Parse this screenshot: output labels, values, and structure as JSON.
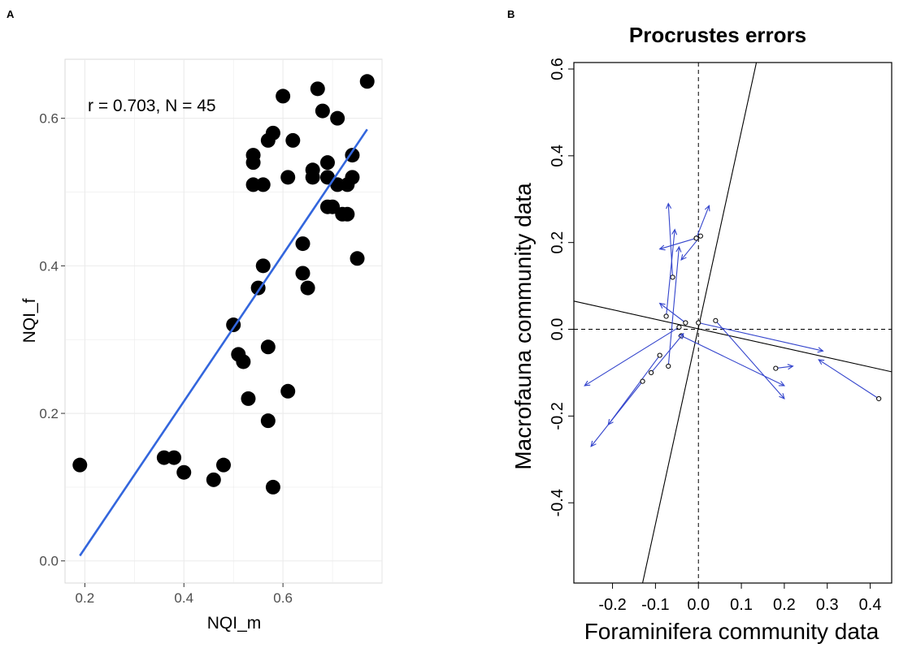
{
  "chart_data": [
    {
      "panel_label": "A",
      "type": "scatter",
      "title": "",
      "xlabel": "NQI_m",
      "ylabel": "NQI_f",
      "xlim": [
        0.16,
        0.8
      ],
      "ylim": [
        -0.03,
        0.68
      ],
      "x_ticks": [
        0.2,
        0.4,
        0.6
      ],
      "x_tick_labels": [
        "0.2",
        "0.4",
        "0.6"
      ],
      "y_ticks": [
        0.0,
        0.2,
        0.4,
        0.6
      ],
      "y_tick_labels": [
        "0.0",
        "0.2",
        "0.4",
        "0.6"
      ],
      "grid": true,
      "annotation": "r = 0.703, N = 45",
      "point_color": "#000000",
      "line_color": "#3366dd",
      "regression_line": {
        "x": [
          0.19,
          0.77
        ],
        "y": [
          0.007,
          0.585
        ]
      },
      "points": [
        {
          "x": 0.19,
          "y": 0.13
        },
        {
          "x": 0.36,
          "y": 0.14
        },
        {
          "x": 0.38,
          "y": 0.14
        },
        {
          "x": 0.4,
          "y": 0.12
        },
        {
          "x": 0.46,
          "y": 0.11
        },
        {
          "x": 0.48,
          "y": 0.13
        },
        {
          "x": 0.5,
          "y": 0.32
        },
        {
          "x": 0.51,
          "y": 0.28
        },
        {
          "x": 0.52,
          "y": 0.27
        },
        {
          "x": 0.53,
          "y": 0.22
        },
        {
          "x": 0.54,
          "y": 0.55
        },
        {
          "x": 0.54,
          "y": 0.54
        },
        {
          "x": 0.54,
          "y": 0.51
        },
        {
          "x": 0.55,
          "y": 0.37
        },
        {
          "x": 0.56,
          "y": 0.51
        },
        {
          "x": 0.56,
          "y": 0.4
        },
        {
          "x": 0.57,
          "y": 0.57
        },
        {
          "x": 0.57,
          "y": 0.29
        },
        {
          "x": 0.57,
          "y": 0.19
        },
        {
          "x": 0.58,
          "y": 0.58
        },
        {
          "x": 0.58,
          "y": 0.1
        },
        {
          "x": 0.6,
          "y": 0.63
        },
        {
          "x": 0.61,
          "y": 0.52
        },
        {
          "x": 0.61,
          "y": 0.23
        },
        {
          "x": 0.62,
          "y": 0.57
        },
        {
          "x": 0.64,
          "y": 0.43
        },
        {
          "x": 0.64,
          "y": 0.39
        },
        {
          "x": 0.65,
          "y": 0.37
        },
        {
          "x": 0.66,
          "y": 0.53
        },
        {
          "x": 0.66,
          "y": 0.52
        },
        {
          "x": 0.67,
          "y": 0.64
        },
        {
          "x": 0.68,
          "y": 0.61
        },
        {
          "x": 0.69,
          "y": 0.54
        },
        {
          "x": 0.69,
          "y": 0.52
        },
        {
          "x": 0.69,
          "y": 0.48
        },
        {
          "x": 0.7,
          "y": 0.48
        },
        {
          "x": 0.71,
          "y": 0.6
        },
        {
          "x": 0.71,
          "y": 0.51
        },
        {
          "x": 0.72,
          "y": 0.47
        },
        {
          "x": 0.73,
          "y": 0.51
        },
        {
          "x": 0.73,
          "y": 0.47
        },
        {
          "x": 0.74,
          "y": 0.55
        },
        {
          "x": 0.74,
          "y": 0.52
        },
        {
          "x": 0.75,
          "y": 0.41
        },
        {
          "x": 0.77,
          "y": 0.65
        }
      ]
    },
    {
      "panel_label": "B",
      "type": "scatter",
      "title": "Procrustes errors",
      "xlabel": "Foraminifera community data",
      "ylabel": "Macrofauna community data",
      "xlim": [
        -0.29,
        0.45
      ],
      "ylim": [
        -0.585,
        0.615
      ],
      "x_ticks": [
        -0.2,
        -0.1,
        0.0,
        0.1,
        0.2,
        0.3,
        0.4
      ],
      "x_tick_labels": [
        "-0.2",
        "-0.1",
        "0.0",
        "0.1",
        "0.2",
        "0.3",
        "0.4"
      ],
      "y_ticks": [
        -0.4,
        -0.2,
        0.0,
        0.2,
        0.4,
        0.6
      ],
      "y_tick_labels": [
        "-0.4",
        "-0.2",
        "0.0",
        "0.2",
        "0.4",
        "0.6"
      ],
      "grid": false,
      "arrow_color": "#3344cc",
      "rotation_axes": [
        {
          "x": [
            -0.29,
            0.45
          ],
          "y": [
            0.065,
            -0.098
          ]
        },
        {
          "x": [
            -0.13,
            0.135
          ],
          "y": [
            -0.585,
            0.615
          ]
        }
      ],
      "arrows": [
        {
          "x0": 0.42,
          "y0": -0.16,
          "x1": 0.28,
          "y1": -0.07
        },
        {
          "x0": 0.18,
          "y0": -0.09,
          "x1": 0.22,
          "y1": -0.085
        },
        {
          "x0": 0.04,
          "y0": 0.02,
          "x1": 0.2,
          "y1": -0.16
        },
        {
          "x0": 0.0,
          "y0": 0.015,
          "x1": 0.29,
          "y1": -0.05
        },
        {
          "x0": -0.03,
          "y0": 0.015,
          "x1": -0.09,
          "y1": 0.06
        },
        {
          "x0": -0.04,
          "y0": -0.015,
          "x1": 0.2,
          "y1": -0.13
        },
        {
          "x0": -0.045,
          "y0": 0.005,
          "x1": -0.265,
          "y1": -0.13
        },
        {
          "x0": -0.005,
          "y0": 0.21,
          "x1": -0.09,
          "y1": 0.185
        },
        {
          "x0": 0.005,
          "y0": 0.215,
          "x1": -0.04,
          "y1": 0.16
        },
        {
          "x0": -0.005,
          "y0": 0.21,
          "x1": 0.025,
          "y1": 0.285
        },
        {
          "x0": -0.06,
          "y0": 0.12,
          "x1": -0.07,
          "y1": 0.29
        },
        {
          "x0": -0.075,
          "y0": 0.03,
          "x1": -0.055,
          "y1": 0.23
        },
        {
          "x0": -0.07,
          "y0": -0.085,
          "x1": -0.045,
          "y1": 0.19
        },
        {
          "x0": -0.09,
          "y0": -0.06,
          "x1": -0.21,
          "y1": -0.22
        },
        {
          "x0": -0.11,
          "y0": -0.1,
          "x1": -0.035,
          "y1": -0.01
        },
        {
          "x0": -0.13,
          "y0": -0.12,
          "x1": -0.25,
          "y1": -0.27
        }
      ]
    }
  ]
}
